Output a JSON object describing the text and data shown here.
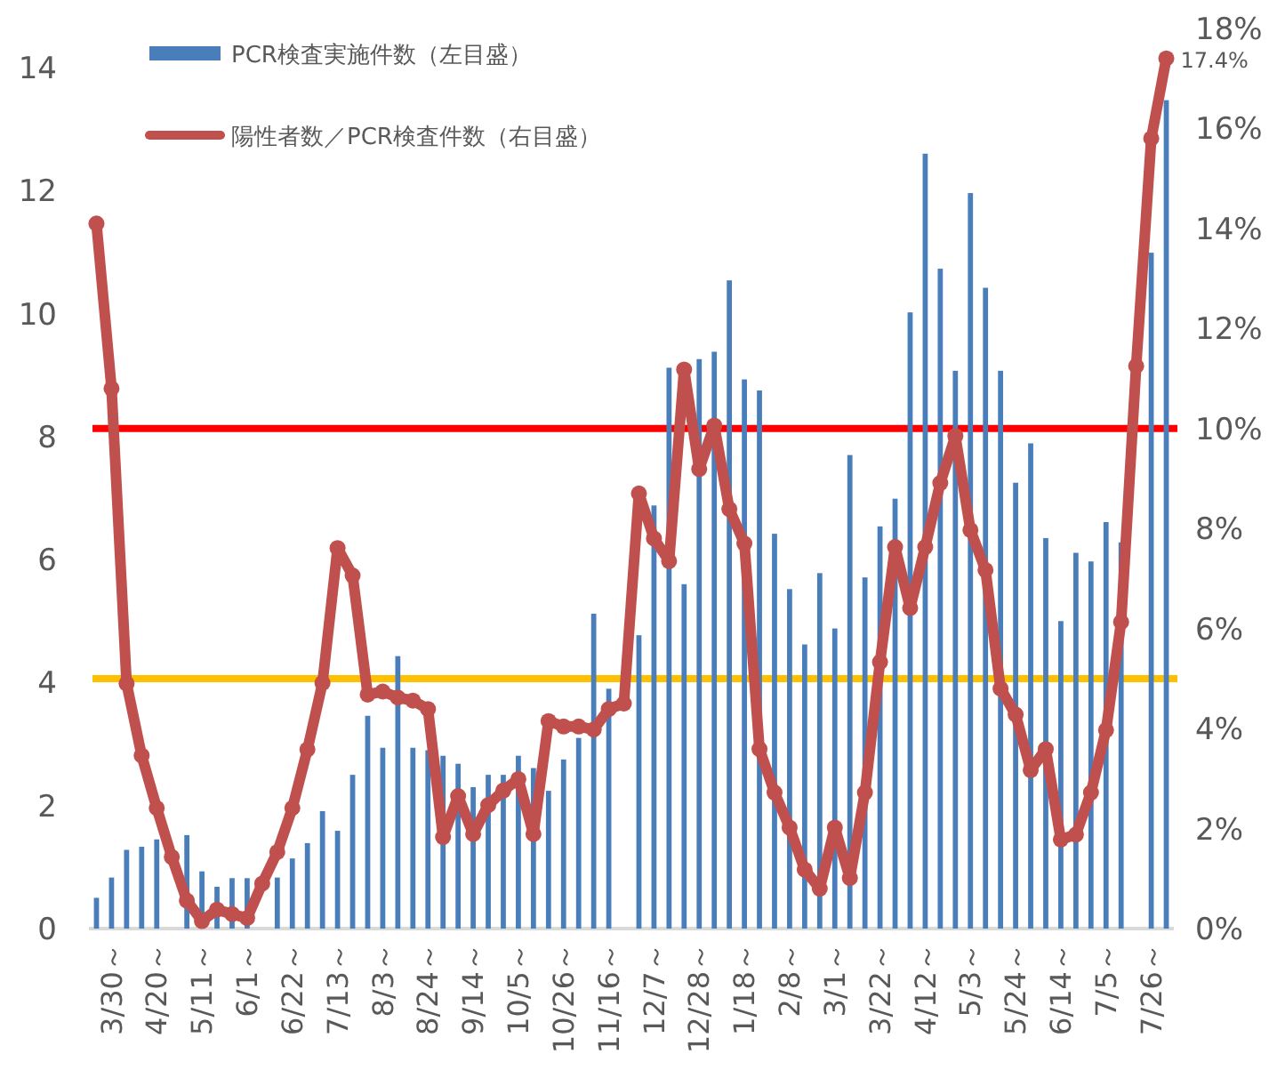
{
  "chart_data": {
    "type": "bar",
    "categories": [
      null,
      "3/30～",
      null,
      null,
      "4/20～",
      null,
      null,
      "5/11～",
      null,
      null,
      "6/1～",
      null,
      null,
      "6/22～",
      null,
      null,
      "7/13～",
      null,
      null,
      "8/3～",
      null,
      null,
      "8/24～",
      null,
      null,
      "9/14～",
      null,
      null,
      "10/5～",
      null,
      null,
      "10/26～",
      null,
      null,
      "11/16～",
      null,
      null,
      "12/7～",
      null,
      null,
      "12/28～",
      null,
      null,
      "1/18～",
      null,
      null,
      "2/8～",
      null,
      null,
      "3/1～",
      null,
      null,
      "3/22～",
      null,
      null,
      "4/12～",
      null,
      null,
      "5/3～",
      null,
      null,
      "5/24～",
      null,
      null,
      "6/14～",
      null,
      null,
      "7/5～",
      null,
      null,
      "7/26～",
      null
    ],
    "series": [
      {
        "name": "PCR検査実施件数（左目盛）",
        "axis": "y",
        "color": "#4a7ebb",
        "values": [
          0.5,
          0.83,
          1.28,
          1.33,
          1.45,
          null,
          1.52,
          0.93,
          0.68,
          0.82,
          0.82,
          null,
          0.83,
          1.14,
          1.39,
          1.91,
          1.59,
          2.5,
          3.46,
          2.94,
          4.43,
          2.94,
          2.9,
          2.81,
          2.68,
          2.3,
          2.5,
          2.5,
          2.81,
          2.61,
          2.24,
          2.75,
          3.1,
          5.12,
          3.9,
          null,
          4.77,
          6.88,
          9.12,
          5.6,
          9.26,
          9.38,
          10.54,
          8.93,
          8.75,
          6.42,
          5.52,
          4.62,
          5.78,
          4.88,
          7.7,
          5.71,
          6.54,
          6.99,
          10.02,
          12.6,
          10.73,
          9.07,
          11.96,
          10.42,
          9.07,
          7.25,
          7.89,
          6.35,
          5.0,
          6.11,
          5.97,
          6.61,
          6.28,
          null,
          10.99,
          13.47
        ]
      },
      {
        "name": "陽性者数／PCR検査件数（右目盛）",
        "type": "line",
        "axis": "y2",
        "color": "#c0504d",
        "values": [
          14.1,
          10.8,
          4.9,
          3.46,
          2.41,
          1.43,
          0.56,
          0.15,
          0.38,
          0.29,
          0.21,
          0.9,
          1.53,
          2.41,
          3.58,
          4.91,
          7.61,
          7.06,
          4.68,
          4.74,
          4.62,
          4.56,
          4.39,
          1.83,
          2.65,
          1.89,
          2.47,
          2.76,
          2.99,
          1.89,
          4.15,
          4.04,
          4.04,
          3.98,
          4.39,
          4.5,
          8.7,
          7.8,
          7.35,
          11.18,
          9.19,
          10.06,
          8.39,
          7.7,
          3.59,
          2.72,
          2.02,
          1.18,
          0.8,
          2.02,
          1.01,
          2.72,
          5.33,
          7.63,
          6.41,
          7.63,
          8.91,
          9.85,
          7.97,
          7.17,
          4.8,
          4.28,
          3.17,
          3.59,
          1.78,
          1.88,
          2.72,
          3.97,
          6.13,
          11.25,
          15.8,
          17.4
        ],
        "value_labels": [
          null,
          null,
          null,
          null,
          null,
          null,
          null,
          null,
          null,
          null,
          null,
          null,
          null,
          null,
          null,
          null,
          null,
          null,
          null,
          null,
          null,
          null,
          null,
          null,
          null,
          null,
          null,
          null,
          null,
          null,
          null,
          null,
          null,
          null,
          null,
          null,
          null,
          null,
          null,
          null,
          null,
          null,
          null,
          null,
          null,
          null,
          null,
          null,
          null,
          null,
          null,
          null,
          null,
          null,
          null,
          null,
          null,
          null,
          null,
          null,
          null,
          null,
          null,
          null,
          null,
          null,
          null,
          null,
          null,
          null,
          null,
          "17.4%"
        ]
      }
    ],
    "ylim": [
      0,
      14
    ],
    "yticks": [
      0,
      2,
      4,
      6,
      8,
      10,
      12,
      14
    ],
    "y2lim": [
      0,
      18
    ],
    "y2ticks": [
      {
        "value": 0,
        "label": "0%"
      },
      {
        "value": 2,
        "label": "2%"
      },
      {
        "value": 4,
        "label": "4%"
      },
      {
        "value": 6,
        "label": "6%"
      },
      {
        "value": 8,
        "label": "8%"
      },
      {
        "value": 10,
        "label": "10%"
      },
      {
        "value": 12,
        "label": "12%"
      },
      {
        "value": 14,
        "label": "14%"
      },
      {
        "value": 16,
        "label": "16%"
      },
      {
        "value": 18,
        "label": "18%"
      }
    ],
    "ref_lines": [
      {
        "axis": "y2",
        "value": 10,
        "color": "#ff0000"
      },
      {
        "axis": "y2",
        "value": 5,
        "color": "#ffc000"
      }
    ],
    "marker": "circle",
    "line_style": "solid",
    "legend": "top left"
  }
}
